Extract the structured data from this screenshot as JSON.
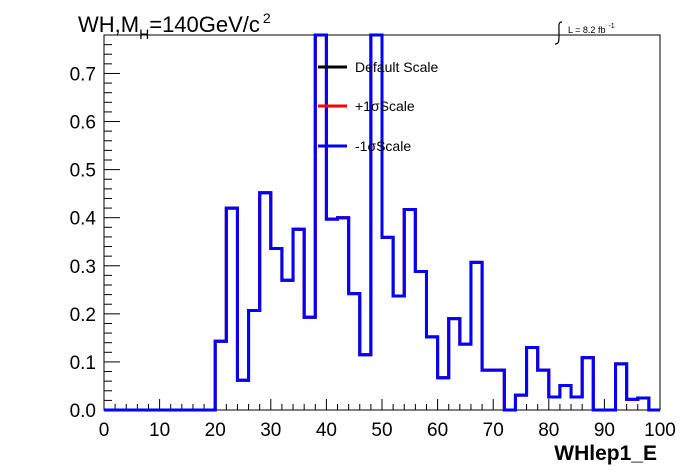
{
  "chart_data": {
    "type": "line",
    "title_main": "WH,M",
    "title_sub": "H",
    "title_rest": "=140GeV/c",
    "title_sup": "2",
    "lumi_label": "L = 8.2 fb",
    "lumi_sup": "-1",
    "xlabel": "WHlep1_E",
    "ylabel": "",
    "xlim": [
      0,
      100
    ],
    "ylim": [
      0,
      0.78
    ],
    "x_ticks": [
      0,
      10,
      20,
      30,
      40,
      50,
      60,
      70,
      80,
      90,
      100
    ],
    "y_ticks": [
      0.0,
      0.1,
      0.2,
      0.3,
      0.4,
      0.5,
      0.6,
      0.7
    ],
    "x_tick_labels": [
      "0",
      "10",
      "20",
      "30",
      "40",
      "50",
      "60",
      "70",
      "80",
      "90",
      "100"
    ],
    "y_tick_labels": [
      "0.0",
      "0.1",
      "0.2",
      "0.3",
      "0.4",
      "0.5",
      "0.6",
      "0.7"
    ],
    "bin_edges": [
      0,
      2,
      4,
      6,
      8,
      10,
      12,
      14,
      16,
      18,
      20,
      22,
      24,
      26,
      28,
      30,
      32,
      34,
      36,
      38,
      40,
      42,
      44,
      46,
      48,
      50,
      52,
      54,
      56,
      58,
      60,
      62,
      64,
      66,
      68,
      70,
      72,
      74,
      76,
      78,
      80,
      82,
      84,
      86,
      88,
      90,
      92,
      94,
      96,
      98,
      100
    ],
    "legend_position": "top-center",
    "series": [
      {
        "name": "Default Scale",
        "color": "#000000",
        "values": [
          0,
          0,
          0,
          0,
          0,
          0,
          0,
          0,
          0,
          0,
          0.143,
          0.42,
          0.062,
          0.207,
          0.452,
          0.336,
          0.27,
          0.376,
          0.193,
          0.78,
          0.397,
          0.4,
          0.242,
          0.115,
          0.78,
          0.359,
          0.237,
          0.417,
          0.288,
          0.152,
          0.067,
          0.19,
          0.137,
          0.307,
          0.083,
          0.083,
          0,
          0.031,
          0.13,
          0.083,
          0.027,
          0.051,
          0.027,
          0.109,
          0,
          0,
          0.096,
          0.022,
          0.025,
          0
        ]
      },
      {
        "name": "+1σScale",
        "color": "#ff0000",
        "values": [
          0,
          0,
          0,
          0,
          0,
          0,
          0,
          0,
          0,
          0,
          0.143,
          0.42,
          0.062,
          0.207,
          0.452,
          0.336,
          0.27,
          0.376,
          0.193,
          0.78,
          0.397,
          0.4,
          0.242,
          0.115,
          0.78,
          0.359,
          0.237,
          0.417,
          0.288,
          0.152,
          0.067,
          0.19,
          0.137,
          0.307,
          0.083,
          0.083,
          0,
          0.031,
          0.13,
          0.083,
          0.027,
          0.051,
          0.027,
          0.109,
          0,
          0,
          0.096,
          0.022,
          0.025,
          0
        ]
      },
      {
        "name": "-1σScale",
        "color": "#0000ff",
        "values": [
          0,
          0,
          0,
          0,
          0,
          0,
          0,
          0,
          0,
          0,
          0.143,
          0.42,
          0.062,
          0.207,
          0.452,
          0.336,
          0.27,
          0.376,
          0.193,
          0.78,
          0.397,
          0.4,
          0.242,
          0.115,
          0.78,
          0.359,
          0.237,
          0.417,
          0.288,
          0.152,
          0.067,
          0.19,
          0.137,
          0.307,
          0.083,
          0.083,
          0,
          0.031,
          0.13,
          0.083,
          0.027,
          0.051,
          0.027,
          0.109,
          0,
          0,
          0.096,
          0.022,
          0.025,
          0
        ]
      }
    ]
  }
}
